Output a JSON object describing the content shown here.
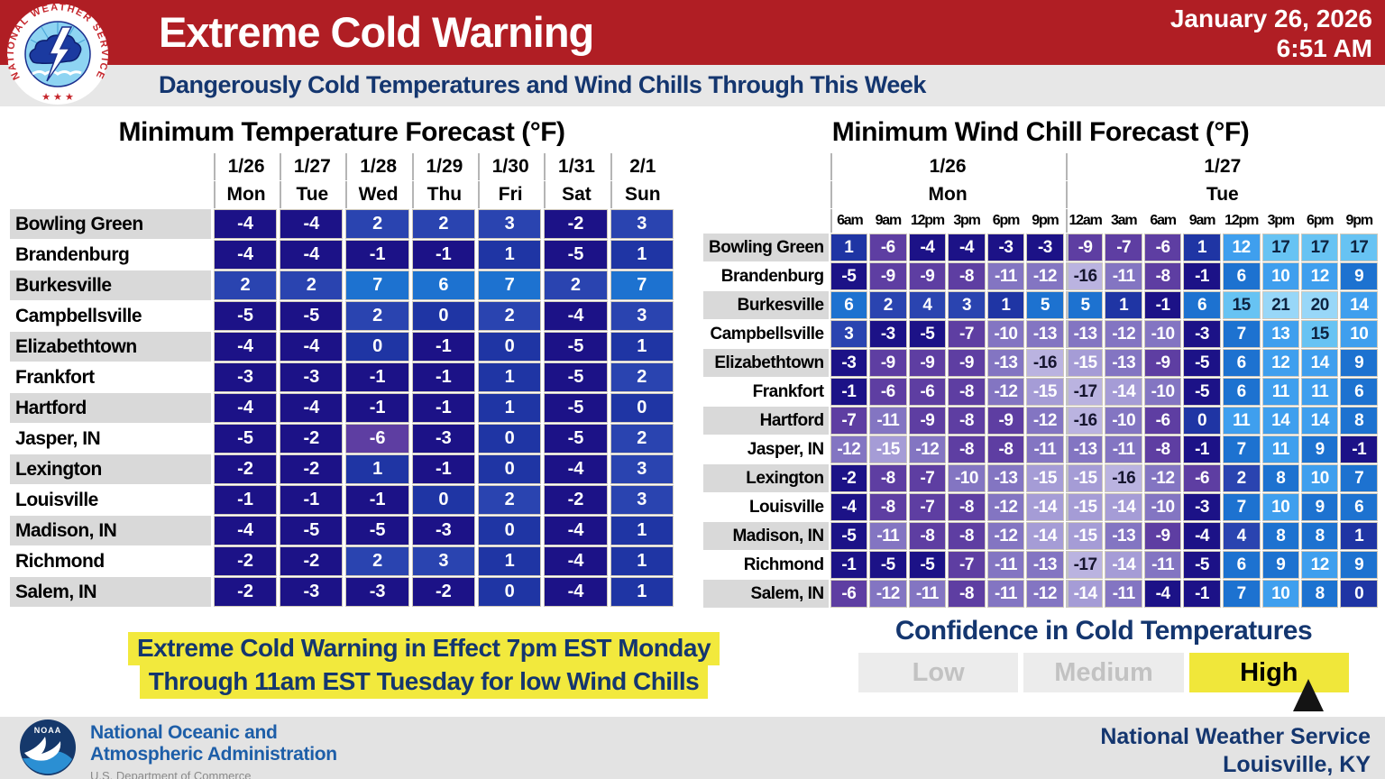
{
  "header": {
    "title": "Extreme Cold Warning",
    "subtitle": "Dangerously Cold Temperatures and Wind Chills Through This Week",
    "date": "January 26, 2026",
    "time": "6:51 AM"
  },
  "nws_logo": {
    "ring_text": "NATIONAL WEATHER SERVICE",
    "stars": "★ ★ ★"
  },
  "colors": {
    "header_red": "#b01e24",
    "title_navy": "#14366f",
    "highlight_yellow": "#f2e93d",
    "confidence_yellow": "#f0e73a",
    "row_stripe_gray": "#d9d9d9"
  },
  "color_scale": [
    {
      "min": 20,
      "bg": "#98d7f8",
      "fg": "#0e2340"
    },
    {
      "min": 15,
      "bg": "#67c3f3",
      "fg": "#0e2340"
    },
    {
      "min": 10,
      "bg": "#3f9fee",
      "fg": "#ffffff"
    },
    {
      "min": 5,
      "bg": "#1d72d0",
      "fg": "#ffffff"
    },
    {
      "min": 2,
      "bg": "#2a44b0",
      "fg": "#ffffff"
    },
    {
      "min": 0,
      "bg": "#1f35a4",
      "fg": "#ffffff"
    },
    {
      "min": -5,
      "bg": "#1c1287",
      "fg": "#ffffff"
    },
    {
      "min": -9,
      "bg": "#5e3ea2",
      "fg": "#ffffff"
    },
    {
      "min": -13,
      "bg": "#8375c2",
      "fg": "#ffffff"
    },
    {
      "min": -15,
      "bg": "#a59cd6",
      "fg": "#ffffff"
    },
    {
      "min": -999,
      "bg": "#bab3e0",
      "fg": "#15152e"
    }
  ],
  "chart_data": [
    {
      "type": "heatmap",
      "title": "Minimum Temperature Forecast (°F)",
      "columns": [
        {
          "date": "1/26",
          "day": "Mon"
        },
        {
          "date": "1/27",
          "day": "Tue"
        },
        {
          "date": "1/28",
          "day": "Wed"
        },
        {
          "date": "1/29",
          "day": "Thu"
        },
        {
          "date": "1/30",
          "day": "Fri"
        },
        {
          "date": "1/31",
          "day": "Sat"
        },
        {
          "date": "2/1",
          "day": "Sun"
        }
      ],
      "rows": [
        {
          "city": "Bowling Green",
          "values": [
            -4,
            -4,
            2,
            2,
            3,
            -2,
            3
          ]
        },
        {
          "city": "Brandenburg",
          "values": [
            -4,
            -4,
            -1,
            -1,
            1,
            -5,
            1
          ]
        },
        {
          "city": "Burkesville",
          "values": [
            2,
            2,
            7,
            6,
            7,
            2,
            7
          ]
        },
        {
          "city": "Campbellsville",
          "values": [
            -5,
            -5,
            2,
            0,
            2,
            -4,
            3
          ]
        },
        {
          "city": "Elizabethtown",
          "values": [
            -4,
            -4,
            0,
            -1,
            0,
            -5,
            1
          ]
        },
        {
          "city": "Frankfort",
          "values": [
            -3,
            -3,
            -1,
            -1,
            1,
            -5,
            2
          ]
        },
        {
          "city": "Hartford",
          "values": [
            -4,
            -4,
            -1,
            -1,
            1,
            -5,
            0
          ]
        },
        {
          "city": "Jasper, IN",
          "values": [
            -5,
            -2,
            -6,
            -3,
            0,
            -5,
            2
          ]
        },
        {
          "city": "Lexington",
          "values": [
            -2,
            -2,
            1,
            -1,
            0,
            -4,
            3
          ]
        },
        {
          "city": "Louisville",
          "values": [
            -1,
            -1,
            -1,
            0,
            2,
            -2,
            3
          ]
        },
        {
          "city": "Madison, IN",
          "values": [
            -4,
            -5,
            -5,
            -3,
            0,
            -4,
            1
          ]
        },
        {
          "city": "Richmond",
          "values": [
            -2,
            -2,
            2,
            3,
            1,
            -4,
            1
          ]
        },
        {
          "city": "Salem, IN",
          "values": [
            -2,
            -3,
            -3,
            -2,
            0,
            -4,
            1
          ]
        }
      ]
    },
    {
      "type": "heatmap",
      "title": "Minimum Wind Chill Forecast (°F)",
      "day_groups": [
        {
          "date": "1/26",
          "day": "Mon",
          "span": 6
        },
        {
          "date": "1/27",
          "day": "Tue",
          "span": 8
        }
      ],
      "times": [
        "6am",
        "9am",
        "12pm",
        "3pm",
        "6pm",
        "9pm",
        "12am",
        "3am",
        "6am",
        "9am",
        "12pm",
        "3pm",
        "6pm",
        "9pm"
      ],
      "rows": [
        {
          "city": "Bowling Green",
          "values": [
            1,
            -6,
            -4,
            -4,
            -3,
            -3,
            -9,
            -7,
            -6,
            1,
            12,
            17,
            17,
            17
          ]
        },
        {
          "city": "Brandenburg",
          "values": [
            -5,
            -9,
            -9,
            -8,
            -11,
            -12,
            -16,
            -11,
            -8,
            -1,
            6,
            10,
            12,
            9
          ]
        },
        {
          "city": "Burkesville",
          "values": [
            6,
            2,
            4,
            3,
            1,
            5,
            5,
            1,
            -1,
            6,
            15,
            21,
            20,
            14
          ]
        },
        {
          "city": "Campbellsville",
          "values": [
            3,
            -3,
            -5,
            -7,
            -10,
            -13,
            -13,
            -12,
            -10,
            -3,
            7,
            13,
            15,
            10
          ]
        },
        {
          "city": "Elizabethtown",
          "values": [
            -3,
            -9,
            -9,
            -9,
            -13,
            -16,
            -15,
            -13,
            -9,
            -5,
            6,
            12,
            14,
            9
          ]
        },
        {
          "city": "Frankfort",
          "values": [
            -1,
            -6,
            -6,
            -8,
            -12,
            -15,
            -17,
            -14,
            -10,
            -5,
            6,
            11,
            11,
            6
          ]
        },
        {
          "city": "Hartford",
          "values": [
            -7,
            -11,
            -9,
            -8,
            -9,
            -12,
            -16,
            -10,
            -6,
            0,
            11,
            14,
            14,
            8
          ]
        },
        {
          "city": "Jasper, IN",
          "values": [
            -12,
            -15,
            -12,
            -8,
            -8,
            -11,
            -13,
            -11,
            -8,
            -1,
            7,
            11,
            9,
            -1
          ]
        },
        {
          "city": "Lexington",
          "values": [
            -2,
            -8,
            -7,
            -10,
            -13,
            -15,
            -15,
            -16,
            -12,
            -6,
            2,
            8,
            10,
            7
          ]
        },
        {
          "city": "Louisville",
          "values": [
            -4,
            -8,
            -7,
            -8,
            -12,
            -14,
            -15,
            -14,
            -10,
            -3,
            7,
            10,
            9,
            6
          ]
        },
        {
          "city": "Madison, IN",
          "values": [
            -5,
            -11,
            -8,
            -8,
            -12,
            -14,
            -15,
            -13,
            -9,
            -4,
            4,
            8,
            8,
            1
          ]
        },
        {
          "city": "Richmond",
          "values": [
            -1,
            -5,
            -5,
            -7,
            -11,
            -13,
            -17,
            -14,
            -11,
            -5,
            6,
            9,
            12,
            9
          ]
        },
        {
          "city": "Salem, IN",
          "values": [
            -6,
            -12,
            -11,
            -8,
            -11,
            -12,
            -14,
            -11,
            -4,
            -1,
            7,
            10,
            8,
            0
          ]
        }
      ]
    }
  ],
  "banner": {
    "line1": "Extreme Cold Warning in Effect 7pm EST Monday",
    "line2": "Through 11am EST Tuesday for low Wind Chills"
  },
  "confidence": {
    "title": "Confidence in Cold Temperatures",
    "levels": [
      "Low",
      "Medium",
      "High"
    ],
    "selected": "High"
  },
  "footer": {
    "noaa_label": "NOAA",
    "org_line1": "National Oceanic and",
    "org_line2": "Atmospheric Administration",
    "dept": "U.S. Department of Commerce",
    "office_line1": "National Weather Service",
    "office_line2": "Louisville, KY"
  }
}
